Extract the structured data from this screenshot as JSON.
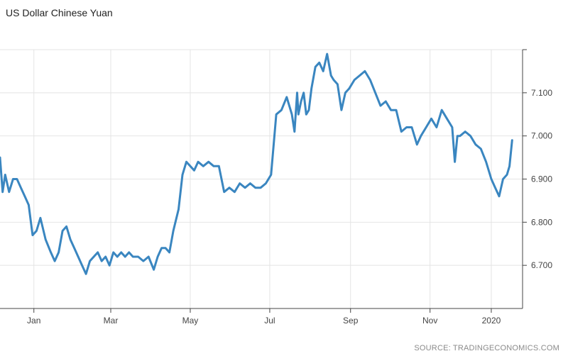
{
  "chart_data": {
    "type": "line",
    "title": "US Dollar Chinese Yuan",
    "source": "SOURCE: TRADINGECONOMICS.COM",
    "xlabel": "",
    "ylabel": "",
    "x_ticks": [
      "Jan",
      "Mar",
      "May",
      "Jul",
      "Sep",
      "Nov",
      "2020"
    ],
    "x_range": [
      "2018-12-20",
      "2020-01-25"
    ],
    "y_ticks": [
      "6.700",
      "6.800",
      "6.900",
      "7.000",
      "7.100"
    ],
    "ylim": [
      6.6,
      7.2
    ],
    "grid": true,
    "legend": "none",
    "line_color": "#3a86c0",
    "series": [
      {
        "x": [
          "2018-12-20",
          "2018-12-22",
          "2018-12-24",
          "2018-12-27",
          "2018-12-30",
          "2019-01-02",
          "2019-01-05",
          "2019-01-08",
          "2019-01-11",
          "2019-01-14",
          "2019-01-17",
          "2019-01-20",
          "2019-01-24",
          "2019-01-28",
          "2019-01-31",
          "2019-02-03",
          "2019-02-06",
          "2019-02-09",
          "2019-02-12",
          "2019-02-15",
          "2019-02-18",
          "2019-02-21",
          "2019-02-24",
          "2019-02-27",
          "2019-03-02",
          "2019-03-05",
          "2019-03-08",
          "2019-03-11",
          "2019-03-14",
          "2019-03-17",
          "2019-03-20",
          "2019-03-23",
          "2019-03-26",
          "2019-03-29",
          "2019-04-01",
          "2019-04-05",
          "2019-04-09",
          "2019-04-13",
          "2019-04-17",
          "2019-04-20",
          "2019-04-23",
          "2019-04-26",
          "2019-04-29",
          "2019-05-02",
          "2019-05-06",
          "2019-05-09",
          "2019-05-12",
          "2019-05-15",
          "2019-05-18",
          "2019-05-21",
          "2019-05-25",
          "2019-05-29",
          "2019-06-02",
          "2019-06-06",
          "2019-06-10",
          "2019-06-14",
          "2019-06-18",
          "2019-06-22",
          "2019-06-26",
          "2019-06-30",
          "2019-07-04",
          "2019-07-08",
          "2019-07-12",
          "2019-07-16",
          "2019-07-20",
          "2019-07-24",
          "2019-07-28",
          "2019-08-01",
          "2019-08-03",
          "2019-08-05",
          "2019-08-06",
          "2019-08-08",
          "2019-08-10",
          "2019-08-12",
          "2019-08-14",
          "2019-08-16",
          "2019-08-19",
          "2019-08-22",
          "2019-08-25",
          "2019-08-28",
          "2019-08-31",
          "2019-09-02",
          "2019-09-05",
          "2019-09-08",
          "2019-09-11",
          "2019-09-14",
          "2019-09-18",
          "2019-09-22",
          "2019-09-26",
          "2019-09-30",
          "2019-10-04",
          "2019-10-08",
          "2019-10-12",
          "2019-10-16",
          "2019-10-20",
          "2019-10-24",
          "2019-10-28",
          "2019-11-01",
          "2019-11-05",
          "2019-11-08",
          "2019-11-12",
          "2019-11-16",
          "2019-11-20",
          "2019-11-24",
          "2019-11-28",
          "2019-12-02",
          "2019-12-04",
          "2019-12-06",
          "2019-12-08",
          "2019-12-12",
          "2019-12-16",
          "2019-12-20",
          "2019-12-24",
          "2019-12-28",
          "2020-01-01",
          "2020-01-04",
          "2020-01-07",
          "2020-01-10",
          "2020-01-13",
          "2020-01-15",
          "2020-01-17"
        ],
        "values": [
          6.95,
          6.87,
          6.91,
          6.87,
          6.9,
          6.9,
          6.88,
          6.86,
          6.84,
          6.77,
          6.78,
          6.81,
          6.76,
          6.73,
          6.71,
          6.73,
          6.78,
          6.79,
          6.76,
          6.74,
          6.72,
          6.7,
          6.68,
          6.71,
          6.72,
          6.73,
          6.71,
          6.72,
          6.7,
          6.73,
          6.72,
          6.73,
          6.72,
          6.73,
          6.72,
          6.72,
          6.71,
          6.72,
          6.69,
          6.72,
          6.74,
          6.74,
          6.73,
          6.78,
          6.83,
          6.91,
          6.94,
          6.93,
          6.92,
          6.94,
          6.93,
          6.94,
          6.93,
          6.93,
          6.87,
          6.88,
          6.87,
          6.89,
          6.88,
          6.89,
          6.88,
          6.88,
          6.89,
          6.91,
          7.05,
          7.06,
          7.09,
          7.05,
          7.01,
          7.1,
          7.05,
          7.08,
          7.1,
          7.05,
          7.06,
          7.11,
          7.16,
          7.17,
          7.15,
          7.19,
          7.14,
          7.13,
          7.12,
          7.06,
          7.1,
          7.11,
          7.13,
          7.14,
          7.15,
          7.13,
          7.1,
          7.07,
          7.08,
          7.06,
          7.06,
          7.01,
          7.02,
          7.02,
          6.98,
          7.0,
          7.02,
          7.04,
          7.02,
          7.06,
          7.04,
          7.02,
          6.94,
          7.0,
          7.0,
          7.01,
          7.0,
          6.98,
          6.97,
          6.94,
          6.9,
          6.88,
          6.86,
          6.9,
          6.91,
          6.93,
          6.99
        ]
      }
    ]
  }
}
